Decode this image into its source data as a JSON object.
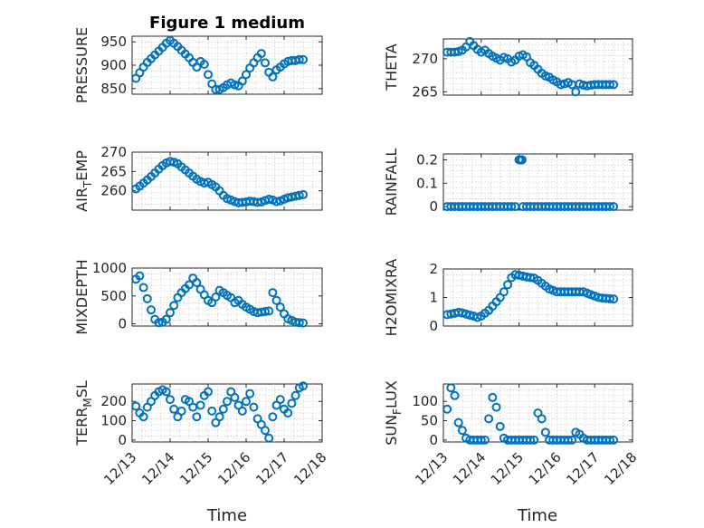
{
  "figure": {
    "title": "Figure 1 medium",
    "xlabel": "Time",
    "marker_color": "#0072BD"
  },
  "chart_data": [
    {
      "type": "scatter",
      "ylabel": "PRESSURE",
      "ylim": [
        838,
        962
      ],
      "yticks": [
        "850",
        "900",
        "950"
      ],
      "ytick_values": [
        850,
        900,
        950
      ],
      "xlim": [
        0,
        5
      ],
      "xticks": [],
      "grid": true,
      "x": [
        0.1,
        0.2,
        0.3,
        0.4,
        0.5,
        0.6,
        0.7,
        0.8,
        0.9,
        1.0,
        1.1,
        1.2,
        1.3,
        1.4,
        1.5,
        1.6,
        1.7,
        1.8,
        1.9,
        2.0,
        2.1,
        2.2,
        2.3,
        2.4,
        2.5,
        2.6,
        2.7,
        2.8,
        2.9,
        3.0,
        3.1,
        3.2,
        3.3,
        3.4,
        3.5,
        3.6,
        3.7,
        3.8,
        3.9,
        4.0,
        4.1,
        4.2,
        4.3,
        4.4,
        4.5
      ],
      "y": [
        872,
        884,
        896,
        906,
        914,
        922,
        930,
        938,
        947,
        953,
        947,
        940,
        932,
        924,
        916,
        906,
        896,
        908,
        902,
        880,
        860,
        848,
        848,
        852,
        858,
        862,
        858,
        856,
        866,
        880,
        894,
        905,
        916,
        925,
        905,
        885,
        875,
        890,
        896,
        903,
        908,
        910,
        910,
        912,
        912
      ]
    },
    {
      "type": "scatter",
      "ylabel": "THETA",
      "ylim": [
        264.5,
        273
      ],
      "yticks": [
        "265",
        "270"
      ],
      "ytick_values": [
        265,
        270
      ],
      "xlim": [
        0,
        5
      ],
      "xticks": [],
      "grid": true,
      "x": [
        0.1,
        0.2,
        0.3,
        0.4,
        0.5,
        0.6,
        0.7,
        0.8,
        0.9,
        1.0,
        1.1,
        1.2,
        1.3,
        1.4,
        1.5,
        1.6,
        1.7,
        1.8,
        1.9,
        2.0,
        2.1,
        2.2,
        2.3,
        2.4,
        2.5,
        2.6,
        2.7,
        2.8,
        2.9,
        3.0,
        3.1,
        3.2,
        3.3,
        3.4,
        3.5,
        3.6,
        3.7,
        3.8,
        3.9,
        4.0,
        4.1,
        4.2,
        4.3,
        4.4,
        4.5
      ],
      "y": [
        271,
        271,
        271,
        271.1,
        271.3,
        271.8,
        272.6,
        272,
        271.4,
        271,
        271.3,
        270.8,
        270.4,
        270.1,
        269.8,
        270.2,
        270,
        269.5,
        269.8,
        270.4,
        270.6,
        270.3,
        269.4,
        269,
        268.4,
        267.8,
        267.4,
        267.2,
        266.8,
        266.5,
        266.1,
        266.2,
        266.4,
        266.1,
        265,
        266.2,
        266,
        265.9,
        266,
        266.1,
        266.1,
        266.1,
        266.1,
        266.1,
        266.1
      ]
    },
    {
      "type": "scatter",
      "ylabel": "AIR_TEMP",
      "ylim": [
        255,
        270
      ],
      "yticks": [
        "260",
        "265",
        "270"
      ],
      "ytick_values": [
        260,
        265,
        270
      ],
      "xlim": [
        0,
        5
      ],
      "xticks": [],
      "grid": true,
      "x": [
        0.1,
        0.2,
        0.3,
        0.4,
        0.5,
        0.6,
        0.7,
        0.8,
        0.9,
        1.0,
        1.1,
        1.2,
        1.3,
        1.4,
        1.5,
        1.6,
        1.7,
        1.8,
        1.9,
        2.0,
        2.1,
        2.2,
        2.3,
        2.4,
        2.5,
        2.6,
        2.7,
        2.8,
        2.9,
        3.0,
        3.1,
        3.2,
        3.3,
        3.4,
        3.5,
        3.6,
        3.7,
        3.8,
        3.9,
        4.0,
        4.1,
        4.2,
        4.3,
        4.4,
        4.5
      ],
      "y": [
        260.5,
        261.2,
        262,
        262.8,
        263.7,
        264.6,
        265.6,
        266.5,
        267.2,
        267.6,
        267.4,
        267,
        266.2,
        265.4,
        264.6,
        263.8,
        263,
        262.4,
        262,
        262.2,
        261.6,
        261,
        260,
        258.8,
        258,
        257.6,
        257.2,
        256.9,
        257,
        257.1,
        257.3,
        257.2,
        257,
        257.1,
        257.5,
        257.8,
        257.6,
        257.2,
        257.4,
        257.8,
        258.2,
        258.4,
        258.6,
        258.8,
        259
      ]
    },
    {
      "type": "scatter",
      "ylabel": "RAINFALL",
      "ylim": [
        -0.015,
        0.225
      ],
      "yticks": [
        "0",
        "0.1",
        "0.2"
      ],
      "ytick_values": [
        0,
        0.1,
        0.2
      ],
      "xlim": [
        0,
        5
      ],
      "xticks": [],
      "grid": true,
      "x": [
        0.1,
        0.2,
        0.3,
        0.4,
        0.5,
        0.6,
        0.7,
        0.8,
        0.9,
        1.0,
        1.1,
        1.2,
        1.3,
        1.4,
        1.5,
        1.6,
        1.7,
        1.8,
        1.9,
        2.0,
        2.02,
        2.04,
        2.06,
        2.08,
        2.1,
        2.2,
        2.3,
        2.4,
        2.5,
        2.6,
        2.7,
        2.8,
        2.9,
        3.0,
        3.1,
        3.2,
        3.3,
        3.4,
        3.5,
        3.6,
        3.7,
        3.8,
        3.9,
        4.0,
        4.1,
        4.2,
        4.3,
        4.4,
        4.5
      ],
      "y": [
        0,
        0,
        0,
        0,
        0,
        0,
        0,
        0,
        0,
        0,
        0,
        0,
        0,
        0,
        0,
        0,
        0,
        0,
        0,
        0.2,
        0.2,
        0.2,
        0.2,
        0.2,
        0,
        0,
        0,
        0,
        0,
        0,
        0,
        0,
        0,
        0,
        0,
        0,
        0,
        0,
        0,
        0,
        0,
        0,
        0,
        0,
        0,
        0,
        0,
        0,
        0
      ]
    },
    {
      "type": "scatter",
      "ylabel": "MIXDEPTH",
      "ylim": [
        -40,
        1000
      ],
      "yticks": [
        "0",
        "500",
        "1000"
      ],
      "ytick_values": [
        0,
        500,
        1000
      ],
      "xlim": [
        0,
        5
      ],
      "xticks": [],
      "grid": true,
      "x": [
        0.1,
        0.2,
        0.3,
        0.4,
        0.5,
        0.6,
        0.7,
        0.8,
        0.9,
        1.0,
        1.1,
        1.2,
        1.3,
        1.4,
        1.5,
        1.6,
        1.7,
        1.8,
        1.9,
        2.0,
        2.1,
        2.2,
        2.3,
        2.4,
        2.5,
        2.6,
        2.7,
        2.8,
        2.9,
        3.0,
        3.1,
        3.2,
        3.3,
        3.4,
        3.5,
        3.6,
        3.7,
        3.8,
        3.9,
        4.0,
        4.1,
        4.2,
        4.3,
        4.4,
        4.5
      ],
      "y": [
        800,
        860,
        650,
        450,
        250,
        80,
        20,
        30,
        80,
        200,
        330,
        470,
        560,
        630,
        700,
        820,
        740,
        620,
        520,
        420,
        380,
        480,
        600,
        560,
        510,
        470,
        380,
        420,
        350,
        300,
        260,
        220,
        200,
        210,
        220,
        230,
        560,
        420,
        300,
        180,
        90,
        60,
        30,
        20,
        15
      ]
    },
    {
      "type": "scatter",
      "ylabel": "H2OMIXRA",
      "ylim": [
        0,
        2
      ],
      "yticks": [
        "0",
        "1",
        "2"
      ],
      "ytick_values": [
        0,
        1,
        2
      ],
      "xlim": [
        0,
        5
      ],
      "xticks": [],
      "grid": true,
      "x": [
        0.1,
        0.2,
        0.3,
        0.4,
        0.5,
        0.6,
        0.7,
        0.8,
        0.9,
        1.0,
        1.1,
        1.2,
        1.3,
        1.4,
        1.5,
        1.6,
        1.7,
        1.8,
        1.9,
        2.0,
        2.1,
        2.2,
        2.3,
        2.4,
        2.5,
        2.6,
        2.7,
        2.8,
        2.9,
        3.0,
        3.1,
        3.2,
        3.3,
        3.4,
        3.5,
        3.6,
        3.7,
        3.8,
        3.9,
        4.0,
        4.1,
        4.2,
        4.3,
        4.4,
        4.5
      ],
      "y": [
        0.4,
        0.42,
        0.45,
        0.48,
        0.46,
        0.42,
        0.38,
        0.35,
        0.3,
        0.35,
        0.45,
        0.55,
        0.7,
        0.85,
        1.0,
        1.2,
        1.45,
        1.7,
        1.8,
        1.78,
        1.75,
        1.72,
        1.7,
        1.68,
        1.6,
        1.5,
        1.4,
        1.3,
        1.25,
        1.2,
        1.2,
        1.2,
        1.2,
        1.2,
        1.2,
        1.2,
        1.2,
        1.15,
        1.1,
        1.05,
        1.0,
        0.98,
        0.97,
        0.96,
        0.95
      ]
    },
    {
      "type": "scatter",
      "ylabel": "TERR_MSL",
      "ylim": [
        -10,
        290
      ],
      "yticks": [
        "0",
        "100",
        "200"
      ],
      "ytick_values": [
        0,
        100,
        200
      ],
      "xlim": [
        0,
        5
      ],
      "xticks": [
        "12/13",
        "12/14",
        "12/15",
        "12/16",
        "12/17",
        "12/18"
      ],
      "xtick_values": [
        0,
        1,
        2,
        3,
        4,
        5
      ],
      "grid": true,
      "x": [
        0.1,
        0.2,
        0.3,
        0.4,
        0.5,
        0.6,
        0.7,
        0.8,
        0.9,
        1.0,
        1.1,
        1.2,
        1.3,
        1.4,
        1.5,
        1.6,
        1.7,
        1.8,
        1.9,
        2.0,
        2.1,
        2.2,
        2.3,
        2.4,
        2.5,
        2.6,
        2.7,
        2.8,
        2.9,
        3.0,
        3.1,
        3.2,
        3.3,
        3.4,
        3.5,
        3.6,
        3.7,
        3.8,
        3.9,
        4.0,
        4.1,
        4.2,
        4.3,
        4.4,
        4.5
      ],
      "y": [
        175,
        140,
        120,
        170,
        200,
        230,
        250,
        260,
        250,
        210,
        160,
        120,
        150,
        210,
        200,
        170,
        120,
        180,
        230,
        250,
        150,
        90,
        120,
        160,
        200,
        250,
        220,
        180,
        150,
        200,
        240,
        170,
        110,
        80,
        50,
        10,
        120,
        180,
        210,
        160,
        140,
        190,
        230,
        270,
        280
      ]
    },
    {
      "type": "scatter",
      "ylabel": "SUN_FLUX",
      "ylim": [
        -5,
        145
      ],
      "yticks": [
        "0",
        "50",
        "100"
      ],
      "ytick_values": [
        0,
        50,
        100
      ],
      "xlim": [
        0,
        5
      ],
      "xticks": [
        "12/13",
        "12/14",
        "12/15",
        "12/16",
        "12/17",
        "12/18"
      ],
      "xtick_values": [
        0,
        1,
        2,
        3,
        4,
        5
      ],
      "grid": true,
      "x": [
        0.1,
        0.2,
        0.3,
        0.4,
        0.5,
        0.6,
        0.7,
        0.8,
        0.9,
        1.0,
        1.1,
        1.2,
        1.3,
        1.4,
        1.5,
        1.6,
        1.7,
        1.8,
        1.9,
        2.0,
        2.1,
        2.2,
        2.3,
        2.4,
        2.5,
        2.6,
        2.7,
        2.8,
        2.9,
        3.0,
        3.1,
        3.2,
        3.3,
        3.4,
        3.5,
        3.6,
        3.7,
        3.8,
        3.9,
        4.0,
        4.1,
        4.2,
        4.3,
        4.4,
        4.5
      ],
      "y": [
        80,
        135,
        115,
        45,
        25,
        5,
        0,
        0,
        0,
        0,
        0,
        55,
        110,
        85,
        35,
        5,
        0,
        0,
        0,
        0,
        0,
        0,
        0,
        0,
        70,
        55,
        20,
        0,
        0,
        0,
        0,
        0,
        0,
        0,
        20,
        15,
        5,
        0,
        0,
        0,
        0,
        0,
        0,
        0,
        0
      ]
    }
  ]
}
